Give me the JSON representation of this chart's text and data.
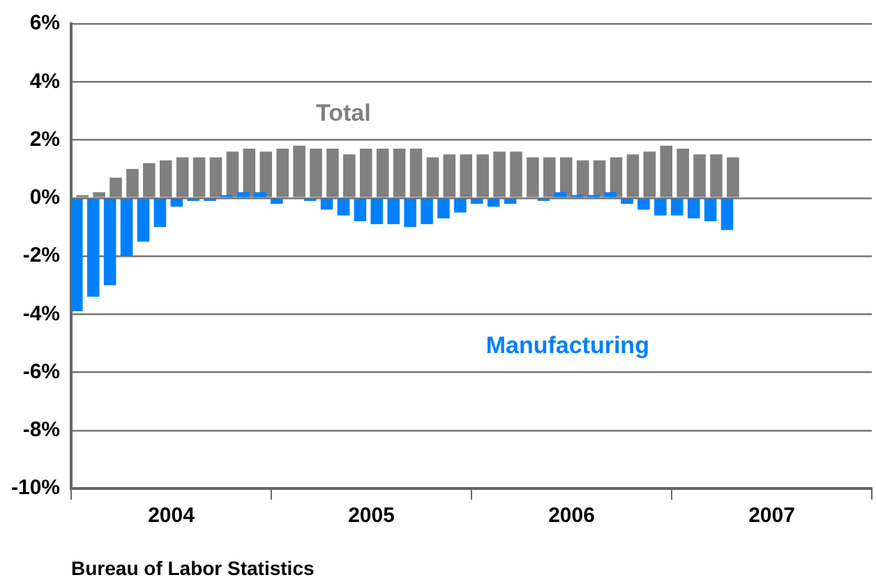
{
  "chart_data": {
    "type": "bar",
    "x": [
      "2004-01-16",
      "2004-02-16",
      "2004-03-16",
      "2004-04-16",
      "2004-05-16",
      "2004-06-16",
      "2004-07-16",
      "2004-08-16",
      "2004-09-16",
      "2004-10-16",
      "2004-11-16",
      "2004-12-16",
      "2005-01-16",
      "2005-02-16",
      "2005-03-16",
      "2005-04-16",
      "2005-05-16",
      "2005-06-16",
      "2005-07-16",
      "2005-08-16",
      "2005-09-16",
      "2005-10-16",
      "2005-11-16",
      "2005-12-16",
      "2006-01-16",
      "2006-02-16",
      "2006-03-16",
      "2006-04-16",
      "2006-05-16",
      "2006-06-16",
      "2006-07-16",
      "2006-08-16",
      "2006-09-16",
      "2006-10-16",
      "2006-11-16",
      "2006-12-16",
      "2007-01-16",
      "2007-02-16",
      "2007-03-16",
      "2007-04-16"
    ],
    "series": [
      {
        "name": "Total",
        "color": "#808080",
        "values": [
          0.1,
          0.2,
          0.7,
          1.0,
          1.2,
          1.3,
          1.4,
          1.4,
          1.4,
          1.6,
          1.7,
          1.6,
          1.7,
          1.8,
          1.7,
          1.7,
          1.5,
          1.7,
          1.7,
          1.7,
          1.7,
          1.4,
          1.5,
          1.5,
          1.5,
          1.6,
          1.6,
          1.4,
          1.4,
          1.4,
          1.3,
          1.3,
          1.4,
          1.5,
          1.6,
          1.8,
          1.7,
          1.5,
          1.5,
          1.4
        ]
      },
      {
        "name": "Manufacturing",
        "color": "#0080ff",
        "values": [
          -3.9,
          -3.4,
          -3.0,
          -2.0,
          -1.5,
          -1.0,
          -0.3,
          -0.1,
          -0.1,
          0.1,
          0.2,
          0.2,
          -0.2,
          0,
          -0.1,
          -0.4,
          -0.6,
          -0.8,
          -0.9,
          -0.9,
          -1.0,
          -0.9,
          -0.7,
          -0.5,
          -0.2,
          -0.3,
          -0.2,
          0,
          -0.1,
          0.2,
          0.1,
          0.1,
          0.2,
          -0.2,
          -0.4,
          -0.6,
          -0.6,
          -0.7,
          -0.8,
          -1.1
        ]
      }
    ],
    "xlim": [
      "2004-01",
      "2008-01"
    ],
    "xticks": [
      {
        "value": "2004-01",
        "label": null
      },
      {
        "value": "2004-07",
        "label": "2004"
      },
      {
        "value": "2005-01",
        "label": null
      },
      {
        "value": "2005-07",
        "label": "2005"
      },
      {
        "value": "2006-01",
        "label": null
      },
      {
        "value": "2006-07",
        "label": "2006"
      },
      {
        "value": "2007-01",
        "label": null
      },
      {
        "value": "2007-07",
        "label": "2007"
      },
      {
        "value": "2008-01",
        "label": null
      }
    ],
    "ylim": [
      -10,
      6
    ],
    "yticks": [
      {
        "value": -10,
        "label": "-10%"
      },
      {
        "value": -8,
        "label": "-8%"
      },
      {
        "value": -6,
        "label": "-6%"
      },
      {
        "value": -4,
        "label": "-4%"
      },
      {
        "value": -2,
        "label": "-2%"
      },
      {
        "value": 0,
        "label": "0%"
      },
      {
        "value": 2,
        "label": "2%"
      },
      {
        "value": 4,
        "label": "4%"
      },
      {
        "value": 6,
        "label": "6%"
      }
    ],
    "grid": "y",
    "annotations": [
      "Bureau of Labor Statistics"
    ]
  }
}
